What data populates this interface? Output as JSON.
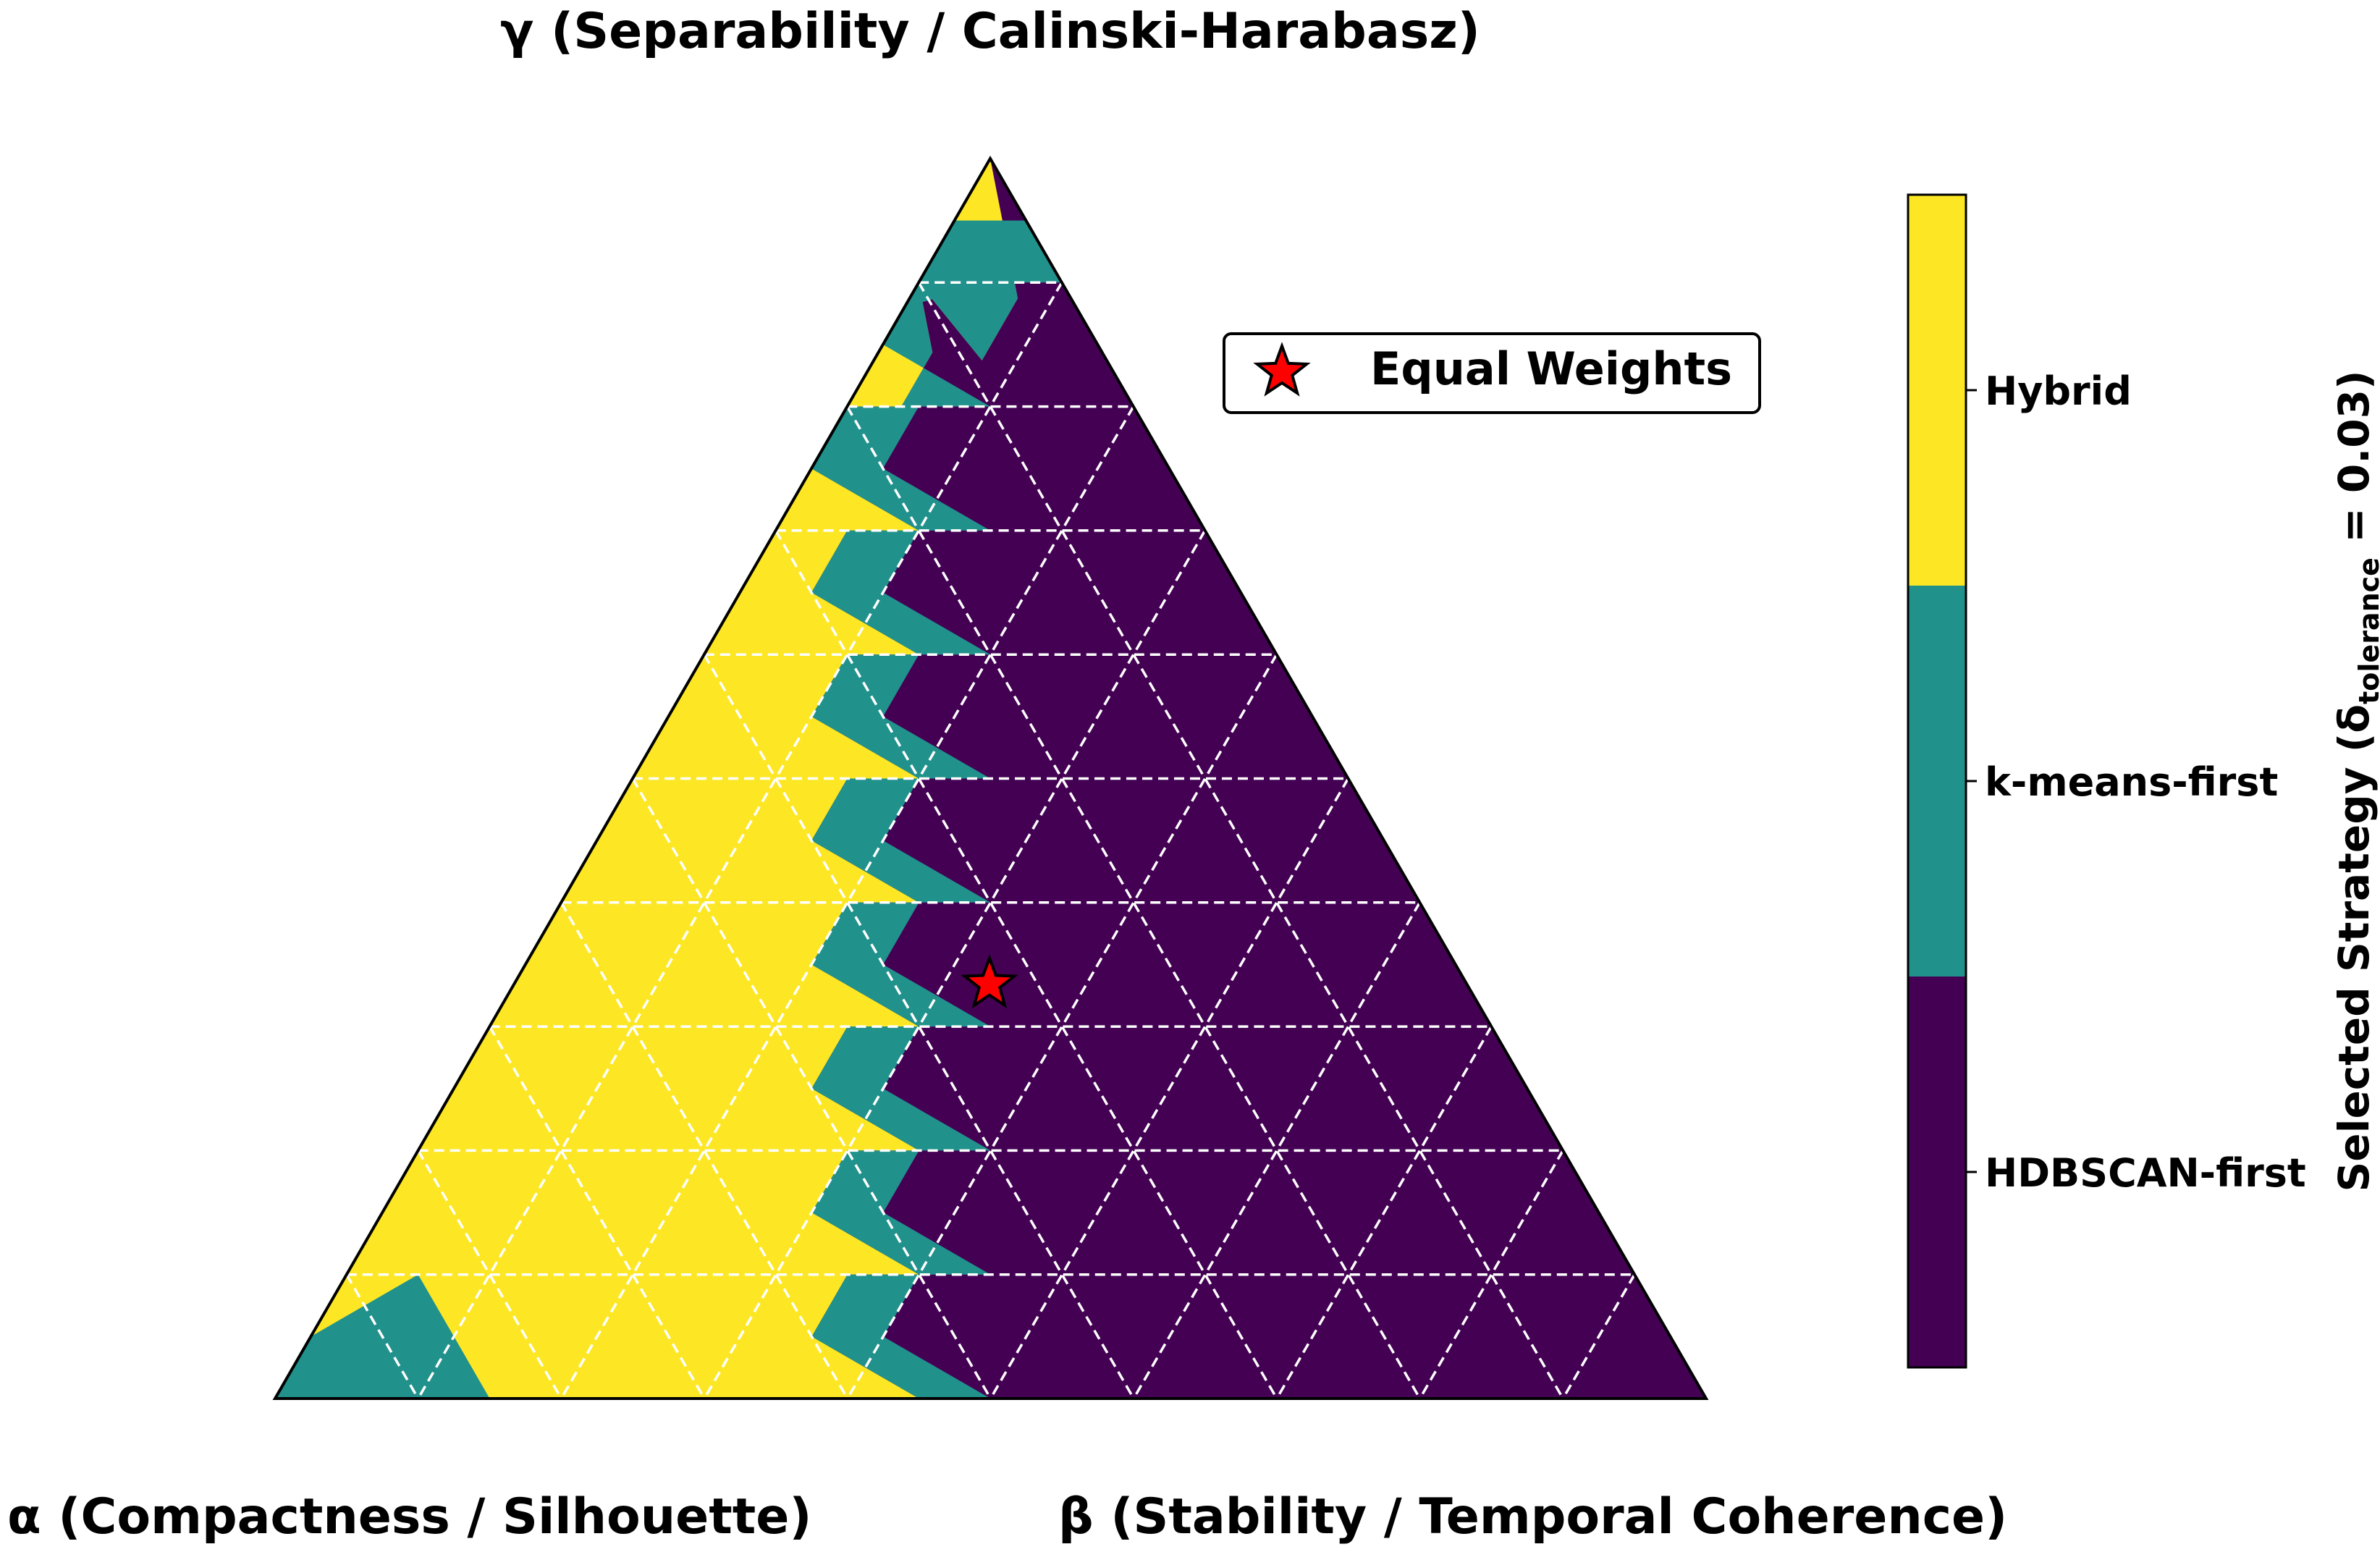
{
  "chart_data": {
    "type": "heatmap",
    "subtype": "ternary",
    "title": "",
    "axes": {
      "top": "γ (Separability / Calinski-Harabasz)",
      "left": "α (Compactness / Silhouette)",
      "right": "β (Stability / Temporal Coherence)"
    },
    "grid": {
      "on": true,
      "divisions": 10,
      "style": "dashed",
      "color": "#ffffff"
    },
    "colorbar": {
      "label_main": "Selected Strategy (δ",
      "label_sub": "tolerance",
      "label_tail": " = 0.03)",
      "categories": [
        "HDBSCAN-first",
        "k-means-first",
        "Hybrid"
      ],
      "colors": [
        "#440154",
        "#21918c",
        "#fde725"
      ]
    },
    "regions": [
      {
        "strategy": "HDBSCAN-first",
        "note": "right side, beta-dominant and gamma-dominant region"
      },
      {
        "strategy": "k-means-first",
        "note": "narrow boundary strip plus bottom-left corner (alpha near 1)"
      },
      {
        "strategy": "Hybrid",
        "note": "alpha-dominant region left of the boundary"
      }
    ],
    "boundary_alpha_at_gamma": {
      "gamma": [
        0.0,
        0.1,
        0.2,
        0.3,
        0.4,
        0.5,
        0.6,
        0.7,
        0.8,
        0.9
      ],
      "hybrid_kmeans_alpha": [
        0.55,
        0.5,
        0.45,
        0.4,
        0.35,
        0.3,
        0.25,
        0.2,
        0.15,
        0.1
      ],
      "kmeans_hdbscan_alpha": [
        0.5,
        0.45,
        0.4,
        0.35,
        0.3,
        0.25,
        0.2,
        0.15,
        0.1,
        0.05
      ]
    },
    "marker": {
      "label": "Equal Weights",
      "alpha": 0.333,
      "beta": 0.333,
      "gamma": 0.333,
      "symbol": "star",
      "color": "#ff0000"
    },
    "legend_position": "top-right"
  }
}
